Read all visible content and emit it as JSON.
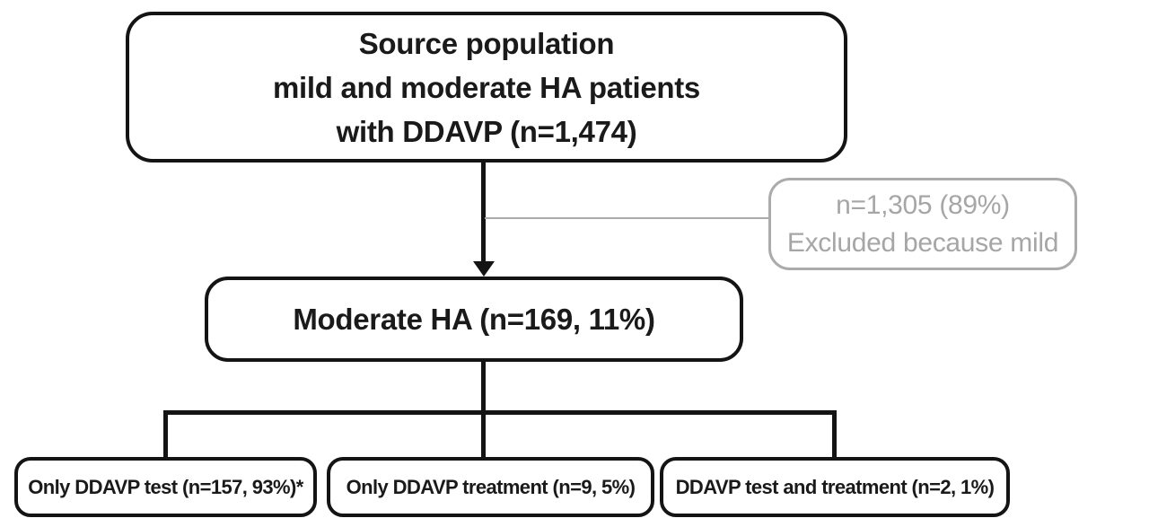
{
  "figure": {
    "source_box": {
      "lines": [
        "Source population",
        "mild and moderate HA patients",
        "with DDAVP (n=1,474)"
      ]
    },
    "excluded_box": {
      "lines": [
        "n=1,305 (89%)",
        "Excluded because mild"
      ]
    },
    "moderate_box": {
      "label": "Moderate HA (n=169, 11%)"
    },
    "leaf_boxes": [
      {
        "label": "Only DDAVP test (n=157, 93%)*"
      },
      {
        "label": "Only DDAVP treatment (n=9, 5%)"
      },
      {
        "label": "DDAVP test and treatment (n=2, 1%)"
      }
    ],
    "colors": {
      "line_black": "#141414",
      "text_black": "#1a1a1a",
      "excluded_gray": "#ababab",
      "background": "#ffffff"
    }
  }
}
